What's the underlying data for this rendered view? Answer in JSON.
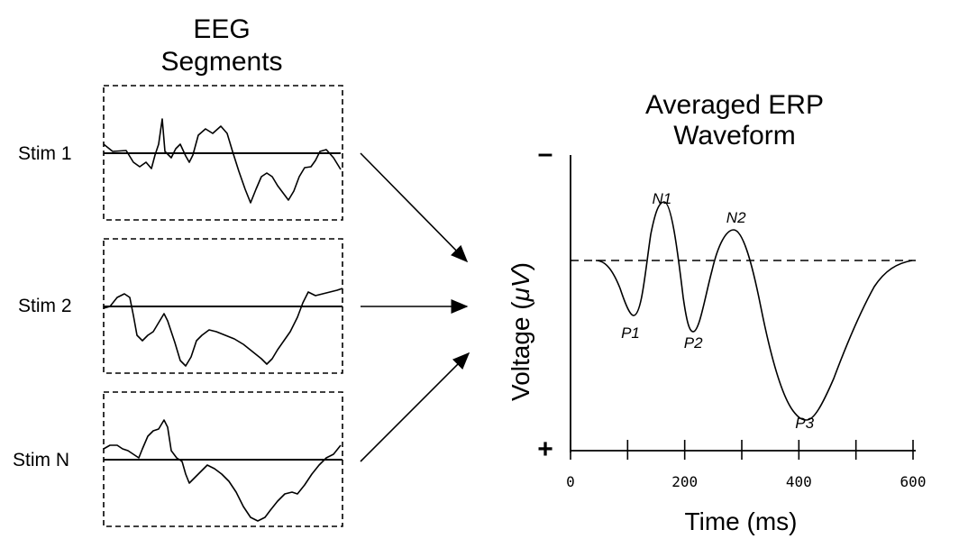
{
  "eeg_panel": {
    "title_line1": "EEG",
    "title_line2": "Segments",
    "segments": [
      {
        "label": "Stim 1"
      },
      {
        "label": "Stim 2"
      },
      {
        "label": "Stim N"
      }
    ]
  },
  "erp_panel": {
    "title_line1": "Averaged ERP",
    "title_line2": "Waveform",
    "negative_sign": "–",
    "positive_sign": "+"
  },
  "chart_data": {
    "type": "line",
    "xlabel": "Time (ms)",
    "ylabel": "Voltage (μV)",
    "ylabel_prefix": "Voltage (",
    "ylabel_unit": "μV",
    "ylabel_suffix": ")",
    "xlim": [
      0,
      600
    ],
    "x_ticks": [
      0,
      200,
      400,
      600
    ],
    "y_axis_note": "negative voltage plotted upward",
    "grid": false,
    "peaks": [
      {
        "label": "P1",
        "x": 105
      },
      {
        "label": "N1",
        "x": 160
      },
      {
        "label": "P2",
        "x": 215
      },
      {
        "label": "N2",
        "x": 290
      },
      {
        "label": "P3",
        "x": 410
      }
    ]
  }
}
